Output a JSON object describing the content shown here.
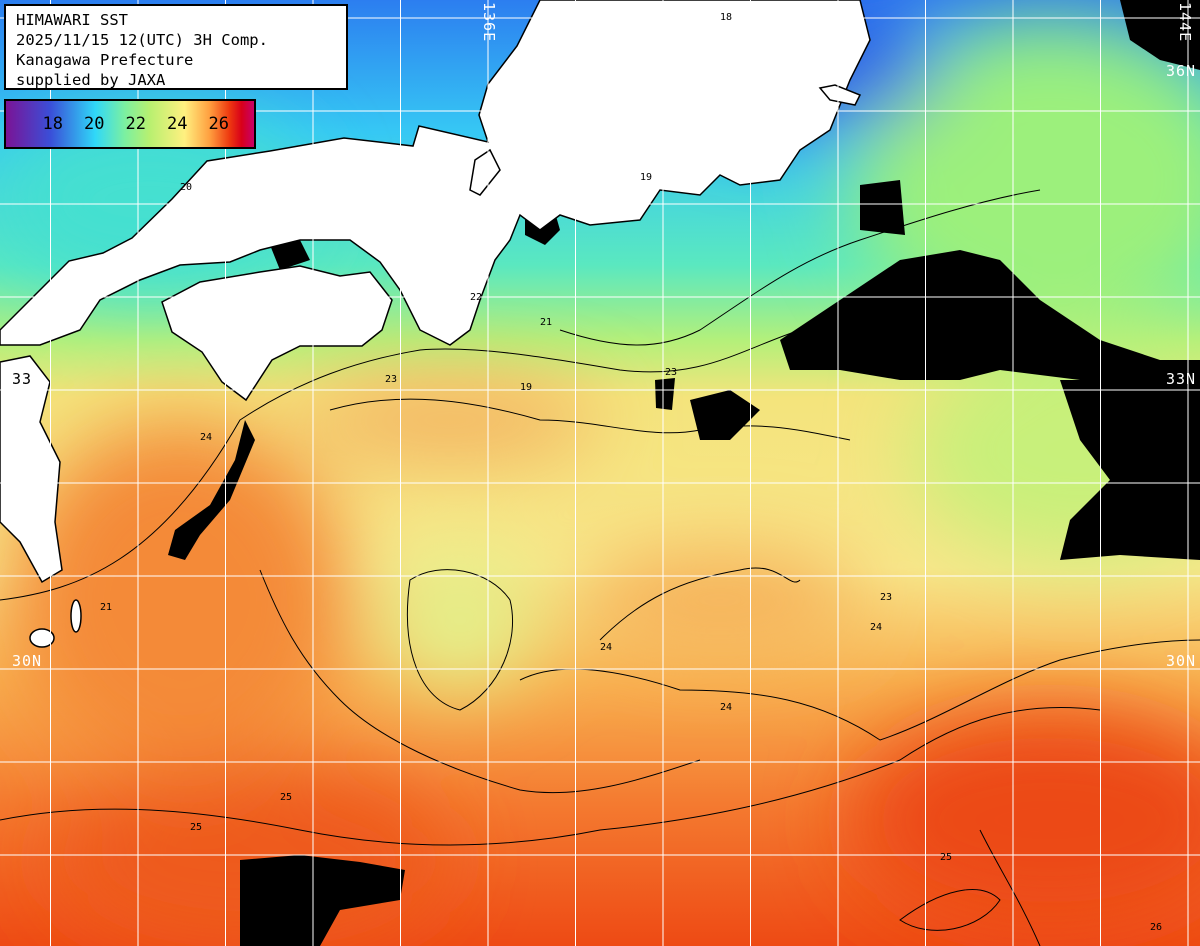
{
  "header": {
    "lines": [
      "HIMAWARI SST",
      "2025/11/15 12(UTC) 3H Comp.",
      "Kanagawa Prefecture",
      "supplied by JAXA"
    ]
  },
  "legend": {
    "ticks": [
      "18",
      "20",
      "22",
      "24",
      "26"
    ],
    "colors": [
      "#7a1496",
      "#3a4fd8",
      "#30d8f8",
      "#b8f070",
      "#fff080",
      "#ffa040",
      "#ee3a10",
      "#c8006a"
    ]
  },
  "grid": {
    "lons": [
      131,
      132,
      133,
      134,
      135,
      136,
      137,
      138,
      139,
      140,
      141,
      142,
      143,
      144
    ],
    "lats": [
      37,
      36,
      35,
      34,
      33,
      32,
      31,
      30,
      29,
      28
    ],
    "labels": {
      "lon_136": "136E",
      "lon_144": "144E",
      "lat_36": "36N",
      "lat_33_right": "33N",
      "lat_33_left": "33",
      "lat_30_right": "30N",
      "lat_30_left": "30N"
    }
  },
  "isotherm_labels": [
    "18",
    "19",
    "19",
    "20",
    "21",
    "21",
    "22",
    "23",
    "23",
    "23",
    "24",
    "24",
    "24",
    "24",
    "25",
    "25",
    "25",
    "26"
  ],
  "colors": {
    "land": "#ffffff",
    "cloud": "#000000",
    "grid": "#ffffff",
    "contour": "#000000"
  }
}
